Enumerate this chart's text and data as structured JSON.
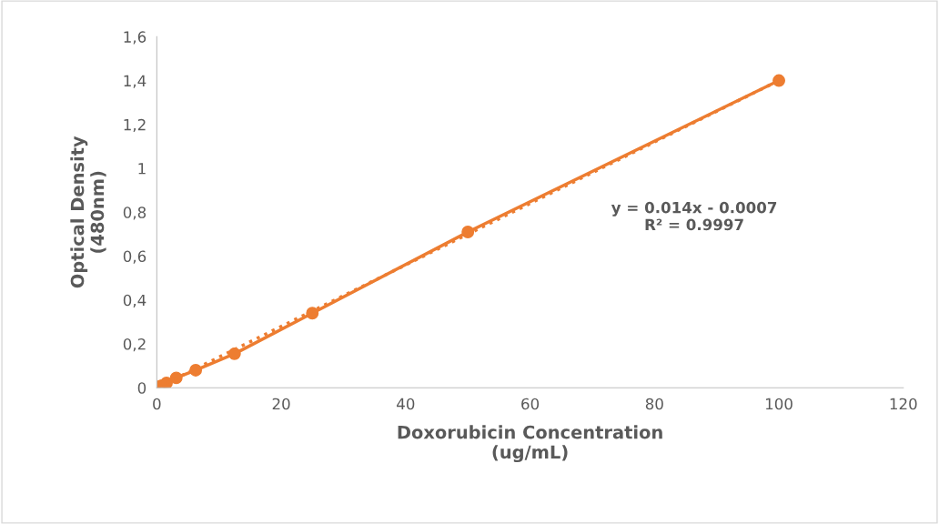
{
  "chart_data": {
    "type": "line",
    "xlabel": "Doxorubicin Concentration\n(ug/mL)",
    "ylabel": "Optical Density\n(480nm)",
    "series": [
      {
        "color": "#ed7d31",
        "marker": "circle",
        "line_style": "solid",
        "x": [
          0.39,
          0.78,
          1.56,
          3.125,
          6.25,
          12.5,
          25,
          50,
          100
        ],
        "values": [
          0.005,
          0.01,
          0.022,
          0.045,
          0.08,
          0.155,
          0.34,
          0.71,
          1.4
        ]
      },
      {
        "color": "#ed7d31",
        "marker": "none",
        "line_style": "dotted",
        "x": [
          0.39,
          100
        ],
        "values": [
          0.005,
          1.4
        ]
      }
    ],
    "annotations": [
      "y = 0.014x - 0.0007\nR² = 0.9997"
    ],
    "xlim": [
      0,
      120
    ],
    "xticks": [
      0,
      20,
      40,
      60,
      80,
      100,
      120
    ],
    "ylim": [
      0,
      1.6
    ],
    "yticks": [
      0,
      {
        "value": 0.2,
        "label": "0,2"
      },
      {
        "value": 0.4,
        "label": "0,4"
      },
      {
        "value": 0.6,
        "label": "0,6"
      },
      {
        "value": 0.8,
        "label": "0,8"
      },
      1,
      {
        "value": 1.2,
        "label": "1,2"
      },
      {
        "value": 1.4,
        "label": "1,4"
      },
      {
        "value": 1.6,
        "label": "1,6"
      }
    ],
    "grid": false,
    "legend": false
  }
}
